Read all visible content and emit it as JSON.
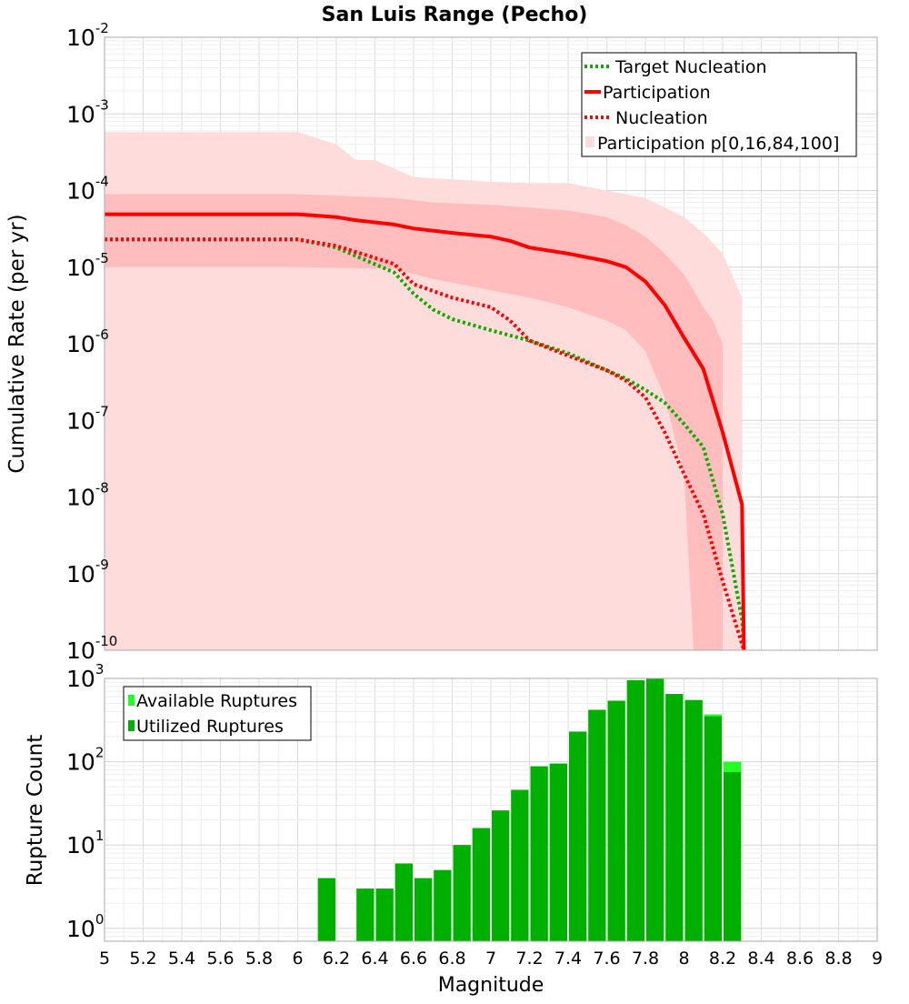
{
  "chart_data": [
    {
      "type": "line",
      "title": "San Luis Range (Pecho)",
      "xlabel": "",
      "ylabel": "Cumulative Rate (per yr)",
      "xlim": [
        5,
        9
      ],
      "ylim": [
        1e-10,
        0.01
      ],
      "yscale": "log",
      "grid": true,
      "y_ticks": [
        {
          "base": "10",
          "exp": "-10"
        },
        {
          "base": "10",
          "exp": "-9"
        },
        {
          "base": "10",
          "exp": "-8"
        },
        {
          "base": "10",
          "exp": "-7"
        },
        {
          "base": "10",
          "exp": "-6"
        },
        {
          "base": "10",
          "exp": "-5"
        },
        {
          "base": "10",
          "exp": "-4"
        },
        {
          "base": "10",
          "exp": "-3"
        },
        {
          "base": "10",
          "exp": "-2"
        }
      ],
      "legend": [
        "Target Nucleation",
        "Participation",
        "Nucleation",
        "Participation p[0,16,84,100]"
      ],
      "legend_position": "top-right",
      "colors": {
        "target": "#11aa00",
        "participation": "#ff0000",
        "nucleation": "#ff0000",
        "band_outer": "#ffdcdc",
        "band_inner": "#ffbdbd"
      },
      "series": [
        {
          "name": "Target Nucleation",
          "style": "dotted",
          "x": [
            5.0,
            6.0,
            6.2,
            6.5,
            6.6,
            6.7,
            6.8,
            7.0,
            7.2,
            7.4,
            7.6,
            7.7,
            7.8,
            7.9,
            8.0,
            8.1,
            8.2,
            8.3,
            8.31
          ],
          "values": [
            2.3e-05,
            2.3e-05,
            1.8e-05,
            8.5e-06,
            4.5e-06,
            2.8e-06,
            2.1e-06,
            1.5e-06,
            1.1e-06,
            7.5e-07,
            4.5e-07,
            3.5e-07,
            2.5e-07,
            1.7e-07,
            9e-08,
            4.5e-08,
            6e-09,
            2.5e-10,
            1e-10
          ]
        },
        {
          "name": "Participation",
          "style": "solid",
          "x": [
            5.0,
            6.0,
            6.1,
            6.2,
            6.3,
            6.5,
            6.6,
            6.8,
            7.0,
            7.1,
            7.2,
            7.4,
            7.6,
            7.7,
            7.8,
            7.9,
            8.0,
            8.1,
            8.2,
            8.3,
            8.31
          ],
          "values": [
            4.9e-05,
            4.9e-05,
            4.7e-05,
            4.5e-05,
            4.1e-05,
            3.6e-05,
            3.2e-05,
            2.8e-05,
            2.5e-05,
            2.2e-05,
            1.8e-05,
            1.5e-05,
            1.2e-05,
            1e-05,
            6.5e-06,
            3.2e-06,
            1.2e-06,
            4.7e-07,
            7e-08,
            8e-09,
            1e-10
          ]
        },
        {
          "name": "Nucleation",
          "style": "dotted",
          "x": [
            5.0,
            6.0,
            6.2,
            6.5,
            6.6,
            6.8,
            7.0,
            7.1,
            7.2,
            7.4,
            7.6,
            7.7,
            7.8,
            7.9,
            8.0,
            8.1,
            8.2,
            8.3,
            8.31
          ],
          "values": [
            2.3e-05,
            2.3e-05,
            1.9e-05,
            1.1e-05,
            6e-06,
            4e-06,
            3e-06,
            2e-06,
            1.1e-06,
            7e-07,
            4.5e-07,
            3.3e-07,
            2e-07,
            7e-08,
            2e-08,
            6e-09,
            8e-10,
            1.2e-10,
            1e-10
          ]
        }
      ],
      "band_outer": {
        "x": [
          5.0,
          6.0,
          6.2,
          6.3,
          6.4,
          6.6,
          6.8,
          7.0,
          7.2,
          7.4,
          7.6,
          7.8,
          7.9,
          8.0,
          8.1,
          8.2,
          8.3
        ],
        "upper": [
          0.00058,
          0.00058,
          0.0004,
          0.00025,
          0.00025,
          0.00015,
          0.00014,
          0.00013,
          0.000125,
          0.000125,
          0.0001,
          8e-05,
          6e-05,
          4.5e-05,
          2.8e-05,
          1.5e-05,
          4e-06
        ],
        "lower": [
          1e-10,
          1e-10,
          1e-10,
          1e-10,
          1e-10,
          1e-10,
          1e-10,
          1e-10,
          1e-10,
          1e-10,
          1e-10,
          1e-10,
          1e-10,
          1e-10,
          1e-10,
          1e-10,
          1e-10
        ]
      },
      "band_inner": {
        "x": [
          5.0,
          6.0,
          6.5,
          6.7,
          7.0,
          7.2,
          7.4,
          7.6,
          7.7,
          7.8,
          7.9,
          8.0,
          8.05,
          8.1,
          8.15,
          8.2
        ],
        "upper": [
          9e-05,
          9e-05,
          8e-05,
          7e-05,
          6.5e-05,
          6e-05,
          5.5e-05,
          4.5e-05,
          3.5e-05,
          2.5e-05,
          1.5e-05,
          8e-06,
          5e-06,
          3e-06,
          2e-06,
          1e-06
        ],
        "lower": [
          1e-05,
          1e-05,
          9.5e-06,
          7e-06,
          5e-06,
          4e-06,
          3e-06,
          2e-06,
          1.5e-06,
          8e-07,
          2e-07,
          2e-08,
          1e-10,
          1e-10,
          1e-10,
          1e-10
        ]
      }
    },
    {
      "type": "bar",
      "title": "",
      "xlabel": "Magnitude",
      "ylabel": "Rupture Count",
      "xlim": [
        5,
        9
      ],
      "ylim": [
        0.7,
        1000
      ],
      "yscale": "log",
      "grid": true,
      "x_ticks": [
        "5",
        "5.2",
        "5.4",
        "5.6",
        "5.8",
        "6",
        "6.2",
        "6.4",
        "6.6",
        "6.8",
        "7",
        "7.2",
        "7.4",
        "7.6",
        "7.8",
        "8",
        "8.2",
        "8.4",
        "8.6",
        "8.8",
        "9"
      ],
      "y_ticks": [
        {
          "base": "10",
          "exp": "0"
        },
        {
          "base": "10",
          "exp": "1"
        },
        {
          "base": "10",
          "exp": "2"
        },
        {
          "base": "10",
          "exp": "3"
        }
      ],
      "legend": [
        "Available Ruptures",
        "Utilized Ruptures"
      ],
      "legend_position": "top-left",
      "colors": {
        "available": "#22ff22",
        "utilized": "#00b000"
      },
      "bin_width": 0.1,
      "bin_centers": [
        6.15,
        6.35,
        6.45,
        6.55,
        6.65,
        6.75,
        6.85,
        6.95,
        7.05,
        7.15,
        7.25,
        7.35,
        7.45,
        7.55,
        7.65,
        7.75,
        7.85,
        7.95,
        8.05,
        8.15,
        8.25
      ],
      "series": [
        {
          "name": "Available Ruptures",
          "values": [
            4,
            3,
            3,
            6,
            4,
            5,
            10,
            16,
            26,
            46,
            88,
            95,
            230,
            420,
            540,
            950,
            1000,
            650,
            550,
            370,
            100
          ]
        },
        {
          "name": "Utilized Ruptures",
          "values": [
            4,
            3,
            3,
            6,
            4,
            5,
            10,
            16,
            26,
            46,
            88,
            95,
            230,
            420,
            540,
            950,
            1000,
            650,
            550,
            350,
            75
          ]
        }
      ]
    }
  ]
}
